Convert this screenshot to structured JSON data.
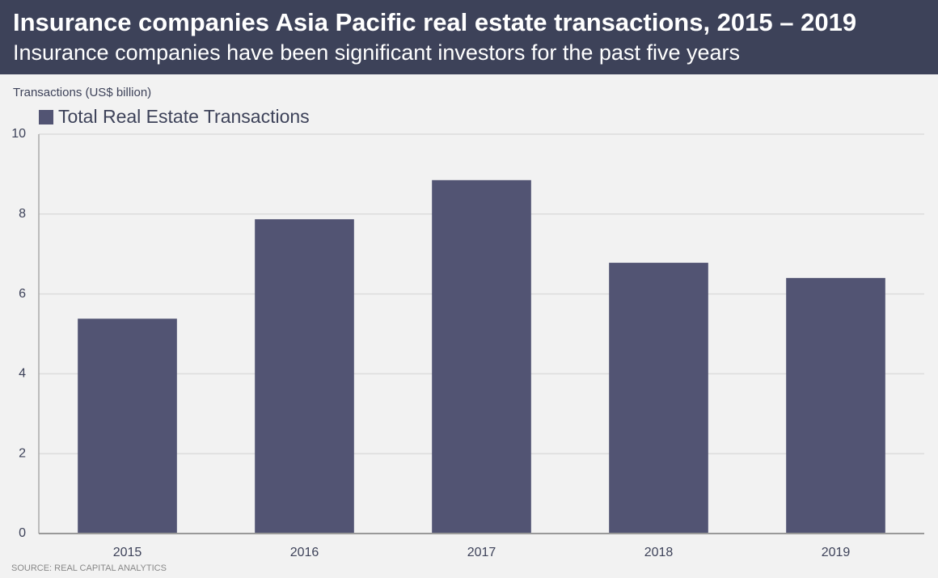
{
  "chart_data": {
    "type": "bar",
    "title": "Insurance companies Asia Pacific real estate transactions, 2015 – 2019",
    "subtitle": "Insurance companies have been significant investors for the past five years",
    "y_label": "Transactions (US$ billion)",
    "source": "SOURCE: REAL CAPITAL ANALYTICS",
    "categories": [
      "2015",
      "2016",
      "2017",
      "2018",
      "2019"
    ],
    "series": [
      {
        "name": "Total Real Estate Transactions",
        "color": "#525473",
        "values": [
          5.38,
          7.87,
          8.85,
          6.78,
          6.4
        ]
      }
    ],
    "ylim": [
      0,
      10
    ],
    "yticks": [
      0,
      2,
      4,
      6,
      8,
      10
    ],
    "grid": true
  }
}
